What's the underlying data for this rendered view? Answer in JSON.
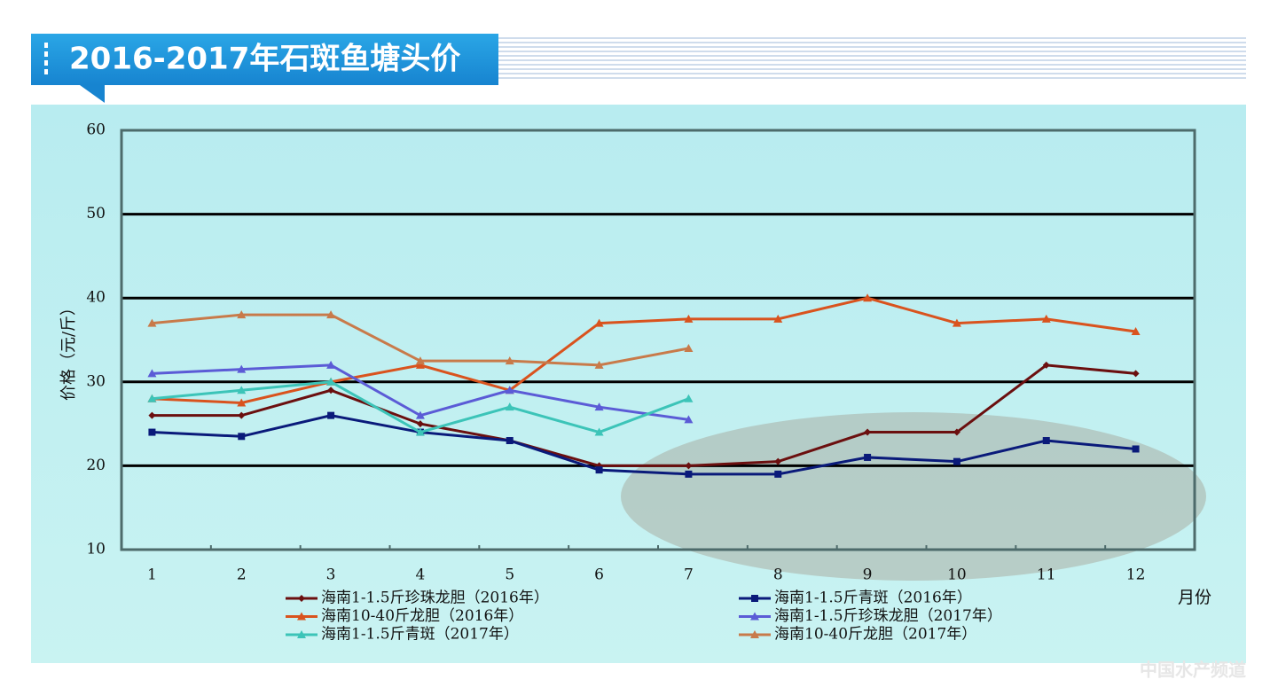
{
  "chart_data": {
    "type": "line",
    "title": "2016-2017年石斑鱼塘头价",
    "y_label": "价格（元/斤）",
    "x_label": "月份",
    "watermark": "中国水产频道",
    "categories": [
      "1",
      "2",
      "3",
      "4",
      "5",
      "6",
      "7",
      "8",
      "9",
      "10",
      "11",
      "12"
    ],
    "ylim": [
      10,
      60
    ],
    "yticks": [
      10,
      20,
      30,
      40,
      50,
      60
    ],
    "grid": true,
    "series": [
      {
        "name": "海南1-1.5斤珍珠龙胆（2016年）",
        "color": "#6b0f0f",
        "marker": "diamond",
        "values": [
          26,
          26,
          29,
          25,
          23,
          20,
          20,
          20.5,
          24,
          24,
          32,
          31
        ]
      },
      {
        "name": "海南1-1.5斤青斑（2016年）",
        "color": "#0a1a7a",
        "marker": "square",
        "values": [
          24,
          23.5,
          26,
          24,
          23,
          19.5,
          19,
          19,
          21,
          20.5,
          23,
          22
        ]
      },
      {
        "name": "海南10-40斤龙胆（2016年）",
        "color": "#d9531e",
        "marker": "triangle",
        "values": [
          28,
          27.5,
          30,
          32,
          29,
          37,
          37.5,
          37.5,
          40,
          37,
          37.5,
          36
        ]
      },
      {
        "name": "海南1-1.5斤珍珠龙胆（2017年）",
        "color": "#5b5bd6",
        "marker": "triangle",
        "values": [
          31,
          31.5,
          32,
          26,
          29,
          27,
          25.5,
          null,
          null,
          null,
          null,
          null
        ]
      },
      {
        "name": "海南1-1.5斤青斑（2017年）",
        "color": "#3cc4b8",
        "marker": "triangle",
        "values": [
          28,
          29,
          30,
          24,
          27,
          24,
          28,
          null,
          null,
          null,
          null,
          null
        ]
      },
      {
        "name": "海南10-40斤龙胆（2017年）",
        "color": "#c87a4a",
        "marker": "triangle",
        "values": [
          37,
          38,
          38,
          32.5,
          32.5,
          32,
          34,
          null,
          null,
          null,
          null,
          null
        ]
      }
    ]
  }
}
